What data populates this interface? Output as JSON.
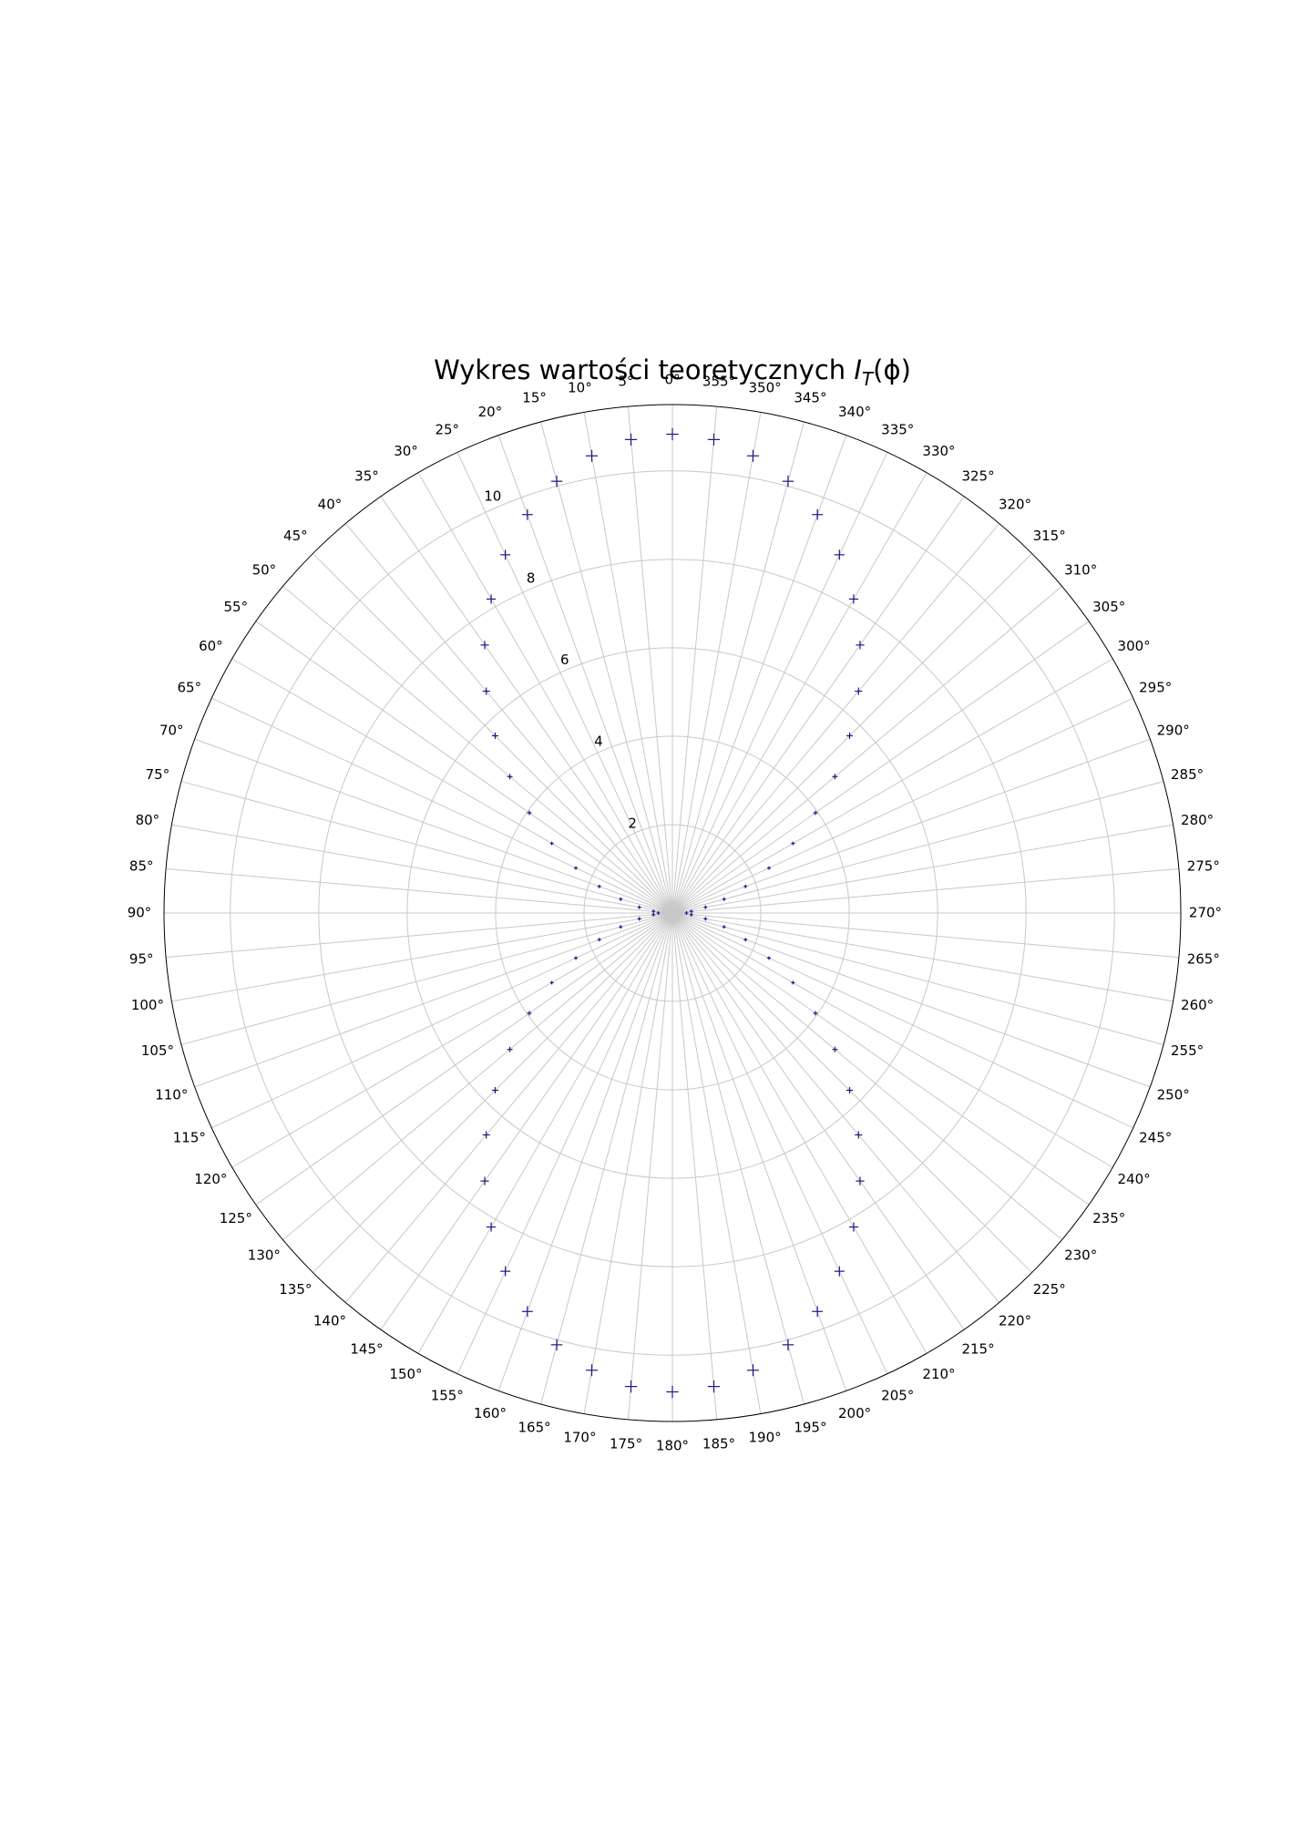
{
  "chart_data": {
    "type": "scatter",
    "projection": "polar",
    "title_prefix": "Wykres wartości teoretycznych ",
    "title_symbol": "I",
    "title_subscript": "T",
    "title_args": "(ϕ)",
    "theta_zero_location": "top",
    "theta_direction": "counterclockwise",
    "theta_ticks_deg": [
      0,
      5,
      10,
      15,
      20,
      25,
      30,
      35,
      40,
      45,
      50,
      55,
      60,
      65,
      70,
      75,
      80,
      85,
      90,
      95,
      100,
      105,
      110,
      115,
      120,
      125,
      130,
      135,
      140,
      145,
      150,
      155,
      160,
      165,
      170,
      175,
      180,
      185,
      190,
      195,
      200,
      205,
      210,
      215,
      220,
      225,
      230,
      235,
      240,
      245,
      250,
      255,
      260,
      265,
      270,
      275,
      280,
      285,
      290,
      295,
      300,
      305,
      310,
      315,
      320,
      325,
      330,
      335,
      340,
      345,
      350,
      355
    ],
    "theta_tick_suffix": "°",
    "r_ticks": [
      2,
      4,
      6,
      8,
      10
    ],
    "r_label_angle_deg": 22.5,
    "rlim": [
      0,
      11.5
    ],
    "grid": true,
    "marker": "+",
    "marker_color": "#1a1a80",
    "series": [
      {
        "theta_deg": [
          0,
          5,
          10,
          15,
          20,
          25,
          30,
          35,
          40,
          45,
          50,
          55,
          60,
          65,
          70,
          75,
          80,
          85,
          90,
          95,
          100,
          105,
          110,
          115,
          120,
          125,
          130,
          135,
          140,
          145,
          150,
          155,
          160,
          165,
          170,
          175,
          180,
          185,
          190,
          195,
          200,
          205,
          210,
          215,
          220,
          225,
          230,
          235,
          240,
          245,
          250,
          255,
          260,
          265,
          270,
          275,
          280,
          285,
          290,
          295,
          300,
          305,
          310,
          315,
          320,
          325,
          330,
          335,
          340,
          345,
          350,
          355
        ],
        "r": [
          10.83,
          10.75,
          10.5,
          10.11,
          9.59,
          8.94,
          8.2,
          7.4,
          6.55,
          5.67,
          4.8,
          3.95,
          3.15,
          2.41,
          1.76,
          1.21,
          0.76,
          0.43,
          0.32,
          0.43,
          0.76,
          1.21,
          1.76,
          2.41,
          3.15,
          3.95,
          4.8,
          5.67,
          6.55,
          7.4,
          8.2,
          8.94,
          9.59,
          10.11,
          10.5,
          10.75,
          10.83,
          10.75,
          10.5,
          10.11,
          9.59,
          8.94,
          8.2,
          7.4,
          6.55,
          5.67,
          4.8,
          3.95,
          3.15,
          2.41,
          1.76,
          1.21,
          0.76,
          0.43,
          0.32,
          0.43,
          0.76,
          1.21,
          1.76,
          2.41,
          3.15,
          3.95,
          4.8,
          5.67,
          6.55,
          7.4,
          8.2,
          8.94,
          9.59,
          10.11,
          10.5,
          10.75
        ]
      }
    ]
  }
}
